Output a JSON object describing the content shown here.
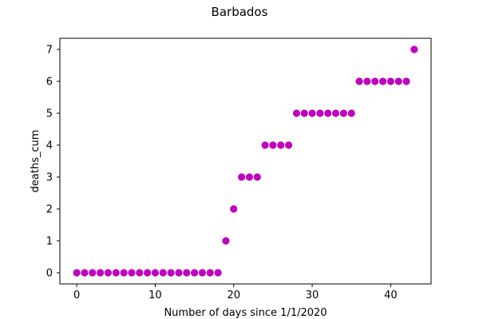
{
  "chart_data": {
    "type": "scatter",
    "title": "Barbados",
    "xlabel": "Number of days since 1/1/2020",
    "ylabel": "deaths_cum",
    "xlim": [
      -2.15,
      45.15
    ],
    "ylim": [
      -0.35,
      7.35
    ],
    "xticks": [
      0,
      10,
      20,
      30,
      40
    ],
    "yticks": [
      0,
      1,
      2,
      3,
      4,
      5,
      6,
      7
    ],
    "grid": false,
    "legend": "none",
    "marker_color": "#bf00bf",
    "series": [
      {
        "x": [
          0,
          1,
          2,
          3,
          4,
          5,
          6,
          7,
          8,
          9,
          10,
          11,
          12,
          13,
          14,
          15,
          16,
          17,
          18,
          19,
          20,
          21,
          22,
          23,
          24,
          25,
          26,
          27,
          28,
          29,
          30,
          31,
          32,
          33,
          34,
          35,
          36,
          37,
          38,
          39,
          40,
          41,
          42,
          43
        ],
        "y": [
          0,
          0,
          0,
          0,
          0,
          0,
          0,
          0,
          0,
          0,
          0,
          0,
          0,
          0,
          0,
          0,
          0,
          0,
          0,
          1,
          2,
          3,
          3,
          3,
          4,
          4,
          4,
          4,
          5,
          5,
          5,
          5,
          5,
          5,
          5,
          5,
          6,
          6,
          6,
          6,
          6,
          6,
          6,
          7
        ]
      }
    ]
  }
}
